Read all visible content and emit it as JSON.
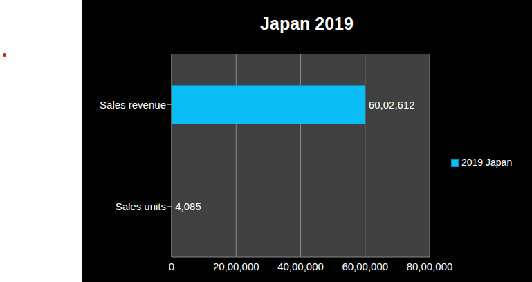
{
  "chart_data": {
    "type": "bar",
    "title": "Japan 2019",
    "orientation": "horizontal",
    "categories": [
      "Sales revenue",
      "Sales units"
    ],
    "series": [
      {
        "name": "2019 Japan",
        "color": "#0BBDF5",
        "values": [
          6002612,
          4085
        ],
        "value_labels": [
          "60,02,612",
          "4,085"
        ]
      }
    ],
    "xlim": [
      0,
      8000000
    ],
    "xticks": [
      0,
      {
        "value": 2000000,
        "label": "20,00,000"
      },
      {
        "value": 4000000,
        "label": "40,00,000"
      },
      {
        "value": 6000000,
        "label": "60,00,000"
      },
      {
        "value": 8000000,
        "label": "80,00,000"
      }
    ],
    "grid": true,
    "data_labels": true,
    "legend": "right"
  }
}
